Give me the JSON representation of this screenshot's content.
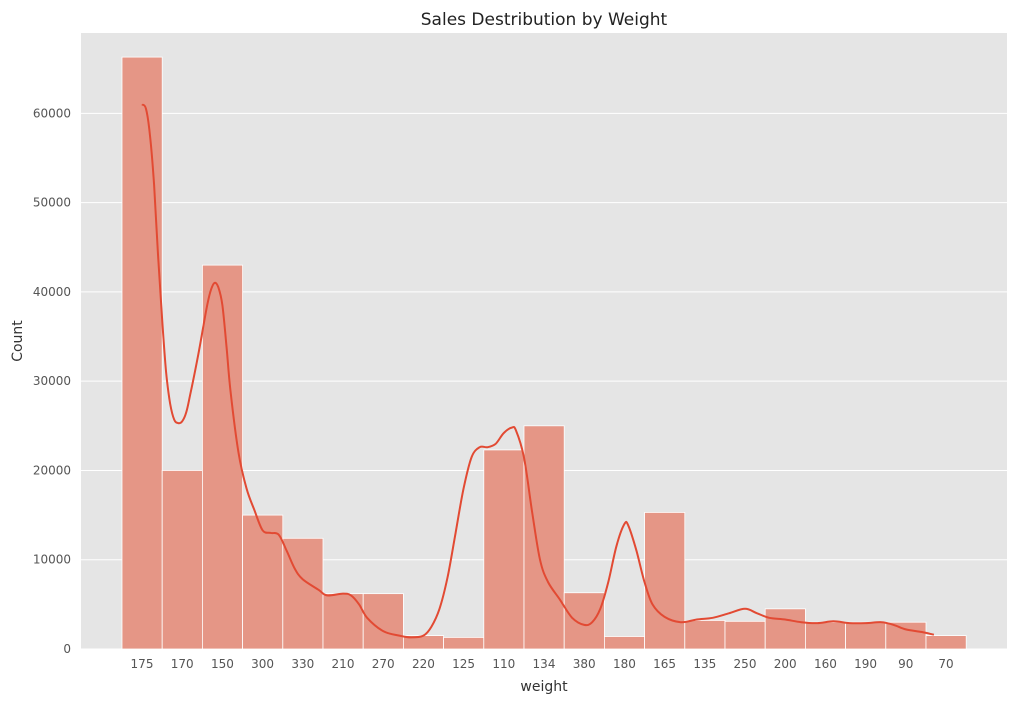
{
  "chart_data": {
    "type": "bar",
    "title": "Sales Destribution by Weight",
    "xlabel": "weight",
    "ylabel": "Count",
    "categories": [
      "175",
      "170",
      "150",
      "300",
      "330",
      "210",
      "270",
      "220",
      "125",
      "110",
      "134",
      "380",
      "180",
      "165",
      "135",
      "250",
      "200",
      "160",
      "190",
      "90",
      "70"
    ],
    "values": [
      66300,
      20000,
      43000,
      15000,
      12400,
      6200,
      6200,
      1500,
      1300,
      22300,
      25000,
      6300,
      1400,
      15300,
      3200,
      3100,
      4500,
      3000,
      3000,
      3000,
      1500
    ],
    "kde": [
      [
        0.0,
        61000
      ],
      [
        0.1,
        60500
      ],
      [
        0.2,
        57500
      ],
      [
        0.3,
        52000
      ],
      [
        0.4,
        44000
      ],
      [
        0.5,
        37000
      ],
      [
        0.6,
        31000
      ],
      [
        0.7,
        27500
      ],
      [
        0.8,
        25700
      ],
      [
        0.9,
        25300
      ],
      [
        1.0,
        25500
      ],
      [
        1.1,
        26500
      ],
      [
        1.2,
        28500
      ],
      [
        1.4,
        33000
      ],
      [
        1.6,
        38000
      ],
      [
        1.7,
        40000
      ],
      [
        1.8,
        41000
      ],
      [
        1.9,
        40500
      ],
      [
        2.0,
        38500
      ],
      [
        2.1,
        34000
      ],
      [
        2.2,
        29000
      ],
      [
        2.4,
        22000
      ],
      [
        2.6,
        18000
      ],
      [
        2.8,
        15500
      ],
      [
        3.0,
        13300
      ],
      [
        3.2,
        13000
      ],
      [
        3.4,
        12800
      ],
      [
        3.6,
        11000
      ],
      [
        3.8,
        9000
      ],
      [
        4.0,
        7800
      ],
      [
        4.4,
        6600
      ],
      [
        4.6,
        6000
      ],
      [
        5.0,
        6200
      ],
      [
        5.2,
        6000
      ],
      [
        5.4,
        5000
      ],
      [
        5.6,
        3500
      ],
      [
        6.0,
        2000
      ],
      [
        6.4,
        1500
      ],
      [
        6.7,
        1300
      ],
      [
        7.0,
        1500
      ],
      [
        7.2,
        2500
      ],
      [
        7.4,
        4500
      ],
      [
        7.6,
        8000
      ],
      [
        7.8,
        13000
      ],
      [
        8.0,
        18000
      ],
      [
        8.2,
        21500
      ],
      [
        8.4,
        22600
      ],
      [
        8.6,
        22600
      ],
      [
        8.8,
        23000
      ],
      [
        9.0,
        24200
      ],
      [
        9.2,
        24800
      ],
      [
        9.3,
        24500
      ],
      [
        9.5,
        21500
      ],
      [
        9.7,
        15500
      ],
      [
        9.9,
        10000
      ],
      [
        10.1,
        7500
      ],
      [
        10.4,
        5500
      ],
      [
        10.7,
        3500
      ],
      [
        11.0,
        2700
      ],
      [
        11.2,
        3000
      ],
      [
        11.4,
        4500
      ],
      [
        11.6,
        7500
      ],
      [
        11.8,
        11500
      ],
      [
        12.0,
        14000
      ],
      [
        12.1,
        13800
      ],
      [
        12.3,
        11000
      ],
      [
        12.5,
        7500
      ],
      [
        12.7,
        5000
      ],
      [
        13.0,
        3600
      ],
      [
        13.4,
        3000
      ],
      [
        13.8,
        3300
      ],
      [
        14.2,
        3500
      ],
      [
        14.6,
        4000
      ],
      [
        15.0,
        4500
      ],
      [
        15.3,
        4000
      ],
      [
        15.6,
        3500
      ],
      [
        16.0,
        3300
      ],
      [
        16.4,
        3000
      ],
      [
        16.8,
        2900
      ],
      [
        17.2,
        3100
      ],
      [
        17.6,
        2900
      ],
      [
        18.0,
        2900
      ],
      [
        18.4,
        3000
      ],
      [
        18.7,
        2700
      ],
      [
        19.0,
        2200
      ],
      [
        19.4,
        1900
      ],
      [
        19.7,
        1600
      ]
    ],
    "yticks": [
      0,
      10000,
      20000,
      30000,
      40000,
      50000,
      60000
    ],
    "ylim": [
      0,
      69000
    ],
    "grid": true,
    "colors": {
      "bar": "#E59686",
      "line": "#E24A33",
      "background": "#E5E5E5",
      "grid": "#FFFFFF"
    }
  }
}
